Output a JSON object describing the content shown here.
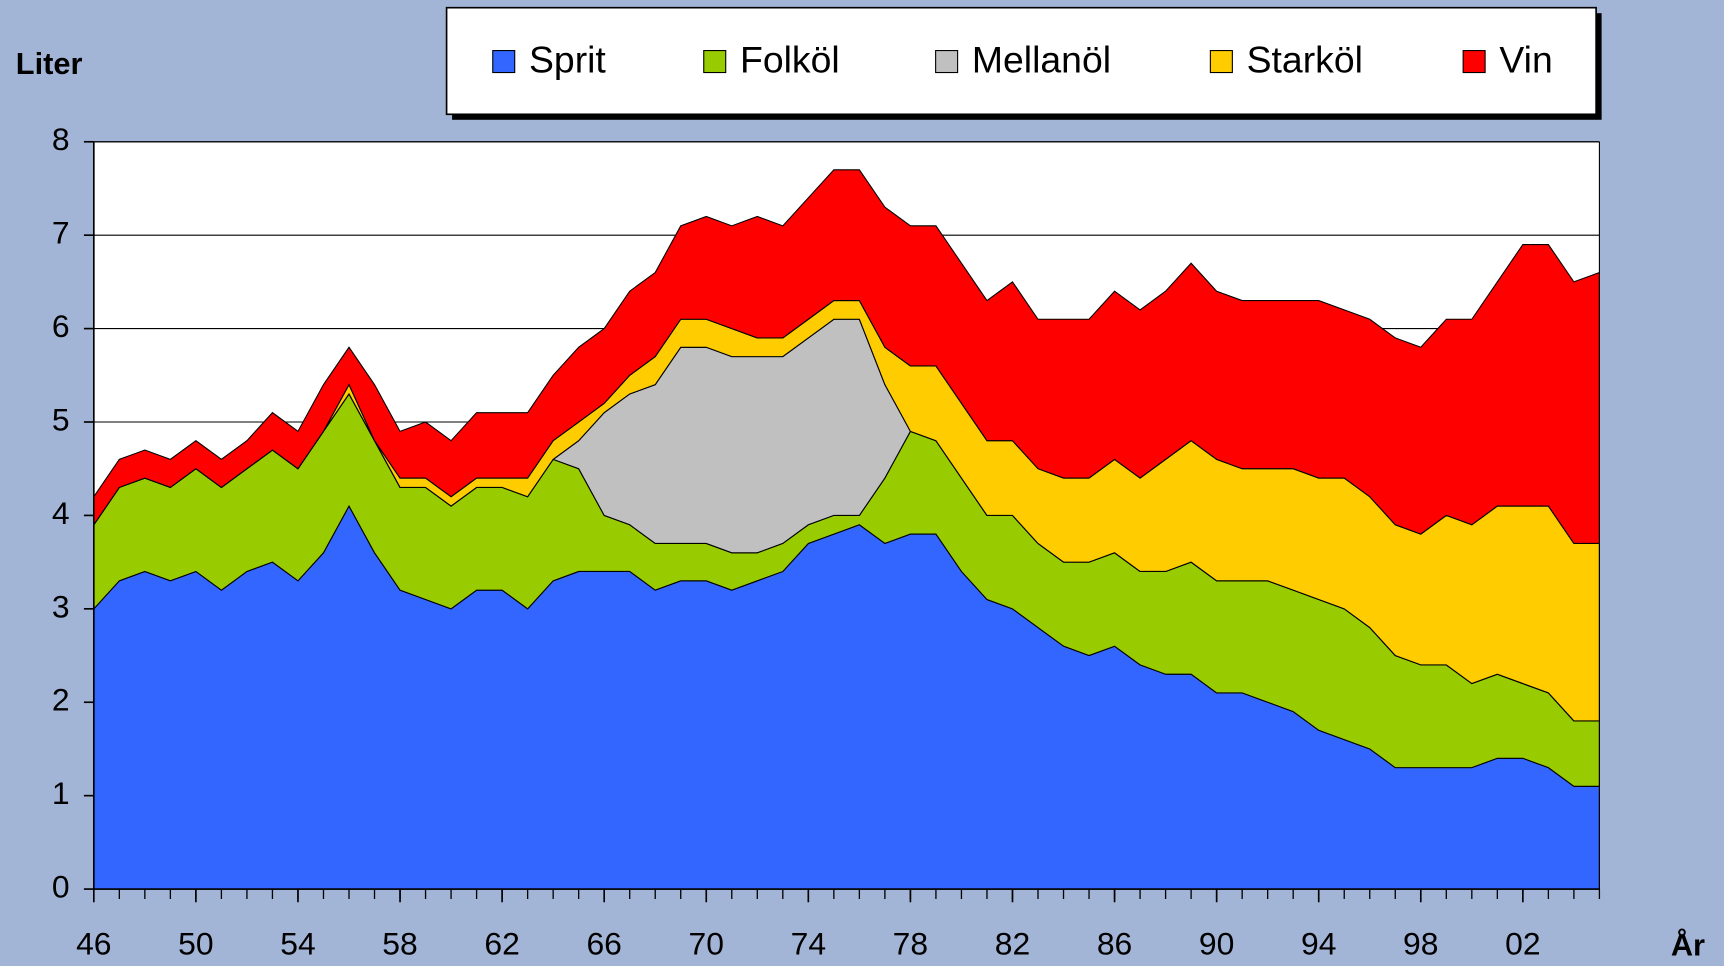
{
  "chart_data": {
    "type": "stacked-area",
    "y_label": "Liter",
    "x_label": "År",
    "x": [
      1946,
      1947,
      1948,
      1949,
      1950,
      1951,
      1952,
      1953,
      1954,
      1955,
      1956,
      1957,
      1958,
      1959,
      1960,
      1961,
      1962,
      1963,
      1964,
      1965,
      1966,
      1967,
      1968,
      1969,
      1970,
      1971,
      1972,
      1973,
      1974,
      1975,
      1976,
      1977,
      1978,
      1979,
      1980,
      1981,
      1982,
      1983,
      1984,
      1985,
      1986,
      1987,
      1988,
      1989,
      1990,
      1991,
      1992,
      1993,
      1994,
      1995,
      1996,
      1997,
      1998,
      1999,
      2000,
      2001,
      2002,
      2003,
      2004,
      2005
    ],
    "series": [
      {
        "name": "Sprit",
        "color": "#3366ff",
        "values": [
          3.0,
          3.3,
          3.4,
          3.3,
          3.4,
          3.2,
          3.4,
          3.5,
          3.3,
          3.6,
          4.1,
          3.6,
          3.2,
          3.1,
          3.0,
          3.2,
          3.2,
          3.0,
          3.3,
          3.4,
          3.4,
          3.4,
          3.2,
          3.3,
          3.3,
          3.2,
          3.3,
          3.4,
          3.7,
          3.8,
          3.9,
          3.7,
          3.8,
          3.8,
          3.4,
          3.1,
          3.0,
          2.8,
          2.6,
          2.5,
          2.6,
          2.4,
          2.3,
          2.3,
          2.1,
          2.1,
          2.0,
          1.9,
          1.7,
          1.6,
          1.5,
          1.3,
          1.3,
          1.3,
          1.3,
          1.4,
          1.4,
          1.3,
          1.1,
          1.1
        ]
      },
      {
        "name": "Folköl",
        "color": "#99cc00",
        "values": [
          0.9,
          1.0,
          1.0,
          1.0,
          1.1,
          1.1,
          1.1,
          1.2,
          1.2,
          1.3,
          1.2,
          1.2,
          1.1,
          1.2,
          1.1,
          1.1,
          1.1,
          1.2,
          1.3,
          1.1,
          0.6,
          0.5,
          0.5,
          0.4,
          0.4,
          0.4,
          0.3,
          0.3,
          0.2,
          0.2,
          0.1,
          0.7,
          1.1,
          1.0,
          1.0,
          0.9,
          1.0,
          0.9,
          0.9,
          1.0,
          1.0,
          1.0,
          1.1,
          1.2,
          1.2,
          1.2,
          1.3,
          1.3,
          1.4,
          1.4,
          1.3,
          1.2,
          1.1,
          1.1,
          0.9,
          0.9,
          0.8,
          0.8,
          0.7,
          0.7
        ]
      },
      {
        "name": "Mellanöl",
        "color": "#c0c0c0",
        "values": [
          0,
          0,
          0,
          0,
          0,
          0,
          0,
          0,
          0,
          0,
          0,
          0,
          0,
          0,
          0,
          0,
          0,
          0,
          0,
          0.3,
          1.1,
          1.4,
          1.7,
          2.1,
          2.1,
          2.1,
          2.1,
          2.0,
          2.0,
          2.1,
          2.1,
          1.0,
          0,
          0,
          0,
          0,
          0,
          0,
          0,
          0,
          0,
          0,
          0,
          0,
          0,
          0,
          0,
          0,
          0,
          0,
          0,
          0,
          0,
          0,
          0,
          0,
          0,
          0,
          0,
          0
        ]
      },
      {
        "name": "Starköl",
        "color": "#ffcc00",
        "values": [
          0,
          0,
          0,
          0,
          0,
          0,
          0,
          0,
          0,
          0,
          0.1,
          0,
          0.1,
          0.1,
          0.1,
          0.1,
          0.1,
          0.2,
          0.2,
          0.2,
          0.1,
          0.2,
          0.3,
          0.3,
          0.3,
          0.3,
          0.2,
          0.2,
          0.2,
          0.2,
          0.2,
          0.4,
          0.7,
          0.8,
          0.8,
          0.8,
          0.8,
          0.8,
          0.9,
          0.9,
          1.0,
          1.0,
          1.2,
          1.3,
          1.3,
          1.2,
          1.2,
          1.3,
          1.3,
          1.4,
          1.4,
          1.4,
          1.4,
          1.6,
          1.7,
          1.8,
          1.9,
          2.0,
          1.9,
          1.9
        ]
      },
      {
        "name": "Vin",
        "color": "#ff0000",
        "values": [
          0.3,
          0.3,
          0.3,
          0.3,
          0.3,
          0.3,
          0.3,
          0.4,
          0.4,
          0.5,
          0.4,
          0.6,
          0.5,
          0.6,
          0.6,
          0.7,
          0.7,
          0.7,
          0.7,
          0.8,
          0.8,
          0.9,
          0.9,
          1.0,
          1.1,
          1.1,
          1.3,
          1.2,
          1.3,
          1.4,
          1.4,
          1.5,
          1.5,
          1.5,
          1.5,
          1.5,
          1.7,
          1.6,
          1.7,
          1.7,
          1.8,
          1.8,
          1.8,
          1.9,
          1.8,
          1.8,
          1.8,
          1.8,
          1.9,
          1.8,
          1.9,
          2.0,
          2.0,
          2.1,
          2.2,
          2.4,
          2.8,
          2.8,
          2.8,
          2.9
        ]
      }
    ],
    "xlim": [
      1946,
      2005
    ],
    "xticks": [
      {
        "value": 1946,
        "label": "46"
      },
      {
        "value": 1950,
        "label": "50"
      },
      {
        "value": 1954,
        "label": "54"
      },
      {
        "value": 1958,
        "label": "58"
      },
      {
        "value": 1962,
        "label": "62"
      },
      {
        "value": 1966,
        "label": "66"
      },
      {
        "value": 1970,
        "label": "70"
      },
      {
        "value": 1974,
        "label": "74"
      },
      {
        "value": 1978,
        "label": "78"
      },
      {
        "value": 1982,
        "label": "82"
      },
      {
        "value": 1986,
        "label": "86"
      },
      {
        "value": 1990,
        "label": "90"
      },
      {
        "value": 1994,
        "label": "94"
      },
      {
        "value": 1998,
        "label": "98"
      },
      {
        "value": 2002,
        "label": "02"
      }
    ],
    "ylim": [
      0,
      8
    ],
    "yticks": [
      0,
      1,
      2,
      3,
      4,
      5,
      6,
      7,
      8
    ],
    "grid": true,
    "legend_position": "top"
  }
}
